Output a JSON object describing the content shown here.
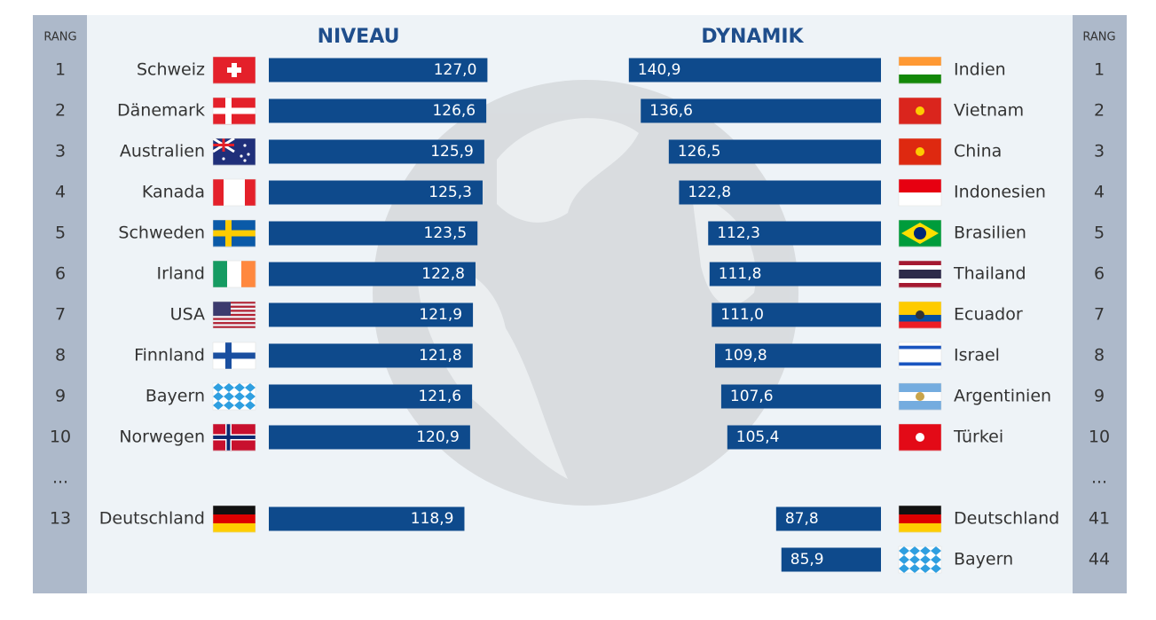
{
  "chart_data": [
    {
      "type": "bar",
      "title": "NIVEAU",
      "rank_label": "RANG",
      "ellipsis": "...",
      "categories": [
        "Schweiz",
        "Dänemark",
        "Australien",
        "Kanada",
        "Schweden",
        "Irland",
        "USA",
        "Finnland",
        "Bayern",
        "Norwegen",
        "Deutschland"
      ],
      "ranks": [
        1,
        2,
        3,
        4,
        5,
        6,
        7,
        8,
        9,
        10,
        13
      ],
      "values": [
        127.0,
        126.6,
        125.9,
        125.3,
        123.5,
        122.8,
        121.9,
        121.8,
        121.6,
        120.9,
        118.9
      ],
      "value_labels": [
        "127,0",
        "126,6",
        "125,9",
        "125,3",
        "123,5",
        "122,8",
        "121,9",
        "121,8",
        "121,6",
        "120,9",
        "118,9"
      ],
      "xlim": [
        50,
        130
      ],
      "color": "#0e4a8c"
    },
    {
      "type": "bar",
      "title": "DYNAMIK",
      "rank_label": "RANG",
      "ellipsis": "...",
      "categories": [
        "Indien",
        "Vietnam",
        "China",
        "Indonesien",
        "Brasilien",
        "Thailand",
        "Ecuador",
        "Israel",
        "Argentinien",
        "Türkei",
        "Deutschland",
        "Bayern"
      ],
      "ranks": [
        1,
        2,
        3,
        4,
        5,
        6,
        7,
        8,
        9,
        10,
        41,
        44
      ],
      "values": [
        140.9,
        136.6,
        126.5,
        122.8,
        112.3,
        111.8,
        111.0,
        109.8,
        107.6,
        105.4,
        87.8,
        85.9
      ],
      "value_labels": [
        "140,9",
        "136,6",
        "126,5",
        "122,8",
        "112,3",
        "111,8",
        "111,0",
        "109,8",
        "107,6",
        "105,4",
        "87,8",
        "85,9"
      ],
      "xlim": [
        50,
        145
      ],
      "color": "#0e4a8c"
    }
  ]
}
